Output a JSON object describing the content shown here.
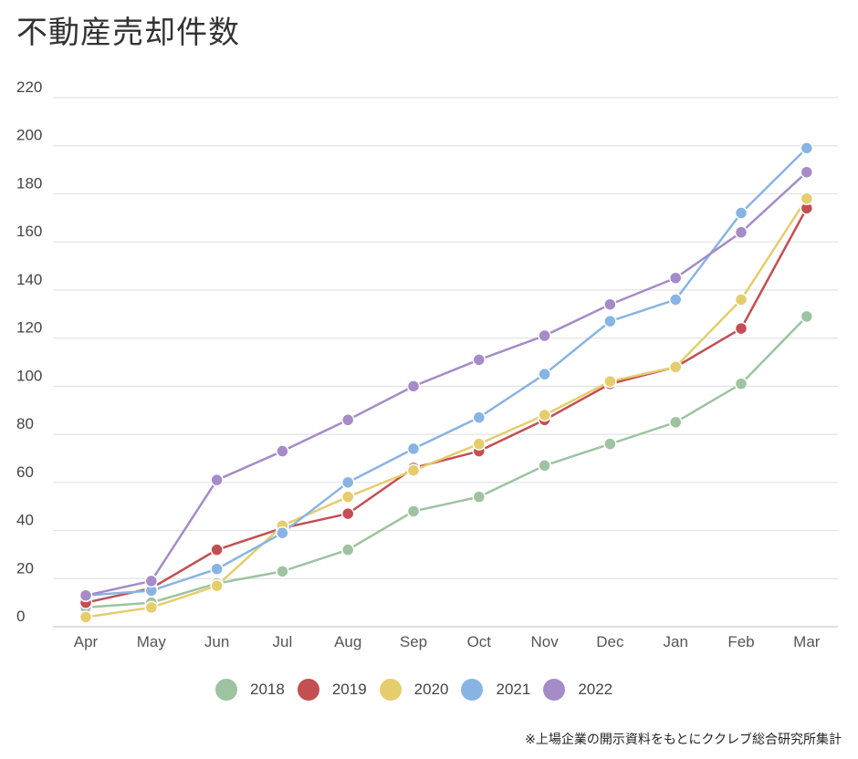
{
  "title": "不動産売却件数",
  "footnote": "※上場企業の開示資料をもとにククレブ総合研究所集計",
  "chart_data": {
    "type": "line",
    "categories": [
      "Apr",
      "May",
      "Jun",
      "Jul",
      "Aug",
      "Sep",
      "Oct",
      "Nov",
      "Dec",
      "Jan",
      "Feb",
      "Mar"
    ],
    "ylim": [
      0,
      220
    ],
    "yticks": [
      "0",
      "20",
      "40",
      "60",
      "80",
      "100",
      "120",
      "140",
      "160",
      "180",
      "200",
      "220"
    ],
    "grid": true,
    "legend_position": "bottom",
    "series": [
      {
        "name": "2018",
        "color": "#9dc3a0",
        "values": [
          8,
          10,
          18,
          23,
          32,
          48,
          54,
          67,
          76,
          85,
          101,
          129
        ]
      },
      {
        "name": "2019",
        "color": "#c44e52",
        "values": [
          10,
          16,
          32,
          41,
          47,
          66,
          73,
          86,
          101,
          108,
          124,
          174
        ]
      },
      {
        "name": "2020",
        "color": "#e5cd6c",
        "values": [
          4,
          8,
          17,
          42,
          54,
          65,
          76,
          88,
          102,
          108,
          136,
          178
        ]
      },
      {
        "name": "2021",
        "color": "#88b4e4",
        "values": [
          13,
          15,
          24,
          39,
          60,
          74,
          87,
          105,
          127,
          136,
          172,
          199
        ]
      },
      {
        "name": "2022",
        "color": "#a58bc8",
        "values": [
          13,
          19,
          61,
          73,
          86,
          100,
          111,
          121,
          134,
          145,
          164,
          189
        ]
      }
    ]
  }
}
